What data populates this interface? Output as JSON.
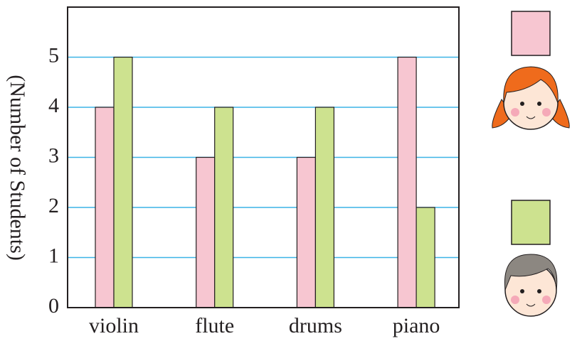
{
  "chart_data": {
    "type": "bar",
    "y_label": "(Number of Students)",
    "categories": [
      "violin",
      "flute",
      "drums",
      "piano"
    ],
    "series": [
      {
        "color": "#f7c6d1",
        "values": [
          4,
          3,
          3,
          5
        ]
      },
      {
        "color": "#cde28f",
        "values": [
          5,
          4,
          4,
          2
        ]
      }
    ],
    "ylim": [
      0,
      6
    ],
    "yticks": [
      0,
      1,
      2,
      3,
      4,
      5
    ],
    "grid": true
  }
}
